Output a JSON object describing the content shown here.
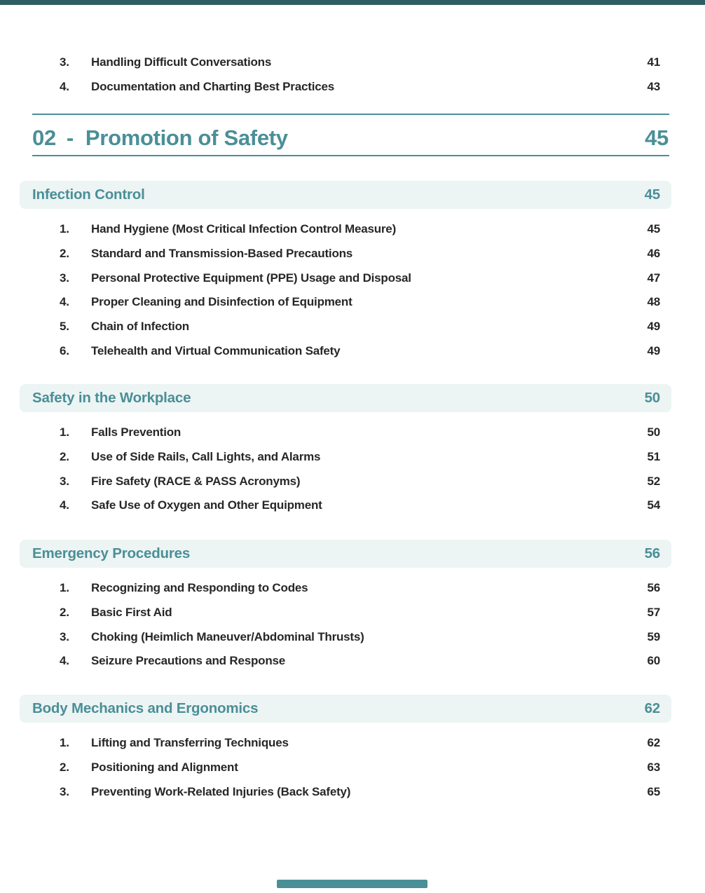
{
  "page": {
    "accent_color": "#4a8f97",
    "section_bg": "#edf4f4",
    "text_color": "#272727",
    "top_strip_color": "#2f5d64"
  },
  "front_matter": {
    "items": [
      {
        "num": "3.",
        "title": "Handling Difficult Conversations",
        "page": "41"
      },
      {
        "num": "4.",
        "title": "Documentation and Charting Best Practices",
        "page": "43"
      }
    ]
  },
  "chapter": {
    "number": "02",
    "separator": "-",
    "title": "Promotion of Safety",
    "page": "45"
  },
  "sections": [
    {
      "title": "Infection Control",
      "page": "45",
      "items": [
        {
          "num": "1.",
          "title": "Hand Hygiene (Most Critical Infection Control Measure)",
          "page": "45"
        },
        {
          "num": "2.",
          "title": "Standard and Transmission-Based Precautions",
          "page": "46"
        },
        {
          "num": "3.",
          "title": "Personal Protective Equipment (PPE) Usage and Disposal",
          "page": "47"
        },
        {
          "num": "4.",
          "title": "Proper Cleaning and Disinfection of Equipment",
          "page": "48"
        },
        {
          "num": "5.",
          "title": "Chain of Infection",
          "page": "49"
        },
        {
          "num": "6.",
          "title": "Telehealth and Virtual Communication Safety",
          "page": "49"
        }
      ]
    },
    {
      "title": "Safety in the Workplace",
      "page": "50",
      "items": [
        {
          "num": "1.",
          "title": "Falls Prevention",
          "page": "50"
        },
        {
          "num": "2.",
          "title": "Use of Side Rails, Call Lights, and Alarms",
          "page": "51"
        },
        {
          "num": "3.",
          "title": "Fire Safety (RACE & PASS Acronyms)",
          "page": "52"
        },
        {
          "num": "4.",
          "title": "Safe Use of Oxygen and Other Equipment",
          "page": "54"
        }
      ]
    },
    {
      "title": "Emergency Procedures",
      "page": "56",
      "items": [
        {
          "num": "1.",
          "title": "Recognizing and Responding to Codes",
          "page": "56"
        },
        {
          "num": "2.",
          "title": "Basic First Aid",
          "page": "57"
        },
        {
          "num": "3.",
          "title": "Choking (Heimlich Maneuver/Abdominal Thrusts)",
          "page": "59"
        },
        {
          "num": "4.",
          "title": "Seizure Precautions and Response",
          "page": "60"
        }
      ]
    },
    {
      "title": "Body Mechanics and Ergonomics",
      "page": "62",
      "items": [
        {
          "num": "1.",
          "title": "Lifting and Transferring Techniques",
          "page": "62"
        },
        {
          "num": "2.",
          "title": "Positioning and Alignment",
          "page": "63"
        },
        {
          "num": "3.",
          "title": "Preventing Work-Related Injuries (Back Safety)",
          "page": "65"
        }
      ]
    }
  ]
}
